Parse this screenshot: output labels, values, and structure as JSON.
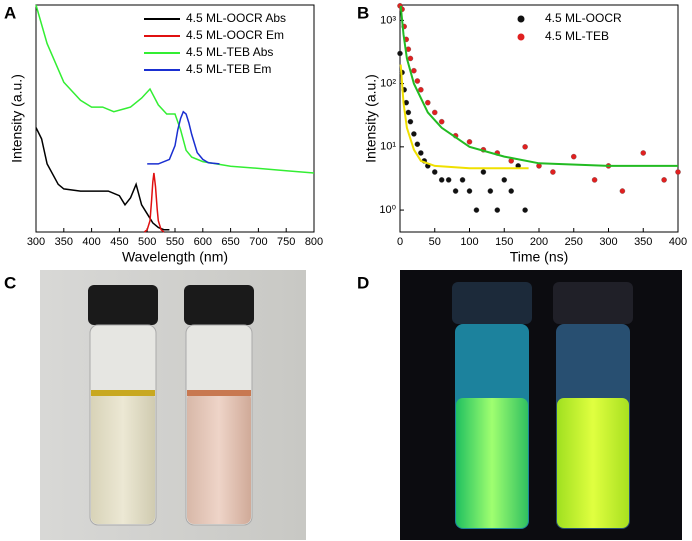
{
  "panel_labels": [
    "A",
    "B",
    "C",
    "D"
  ],
  "chart_data": [
    {
      "type": "line",
      "xlabel": "Wavelength (nm)",
      "ylabel": "Intensity (a.u.)",
      "xlim": [
        300,
        800
      ],
      "xticks": [
        300,
        350,
        400,
        450,
        500,
        550,
        600,
        650,
        700,
        750,
        800
      ],
      "ylim": [
        0,
        10
      ],
      "legend": "upper right",
      "series": [
        {
          "name": "4.5 ML-OOCR Abs",
          "color": "#000000",
          "x": [
            300,
            310,
            320,
            340,
            350,
            380,
            400,
            430,
            450,
            460,
            470,
            480,
            490,
            500,
            510,
            520,
            530,
            540
          ],
          "values": [
            4.6,
            4.1,
            3.0,
            2.1,
            1.9,
            1.8,
            1.8,
            1.8,
            1.6,
            1.2,
            1.5,
            2.1,
            1.2,
            0.8,
            0.4,
            0.2,
            0.1,
            0.1
          ]
        },
        {
          "name": "4.5 ML-OOCR Em",
          "color": "#e01010",
          "x": [
            495,
            500,
            505,
            508,
            510,
            512,
            515,
            518,
            520,
            525,
            530
          ],
          "values": [
            0,
            0.1,
            0.5,
            1.4,
            2.2,
            2.6,
            2.0,
            1.0,
            0.5,
            0.1,
            0
          ]
        },
        {
          "name": "4.5 ML-TEB Abs",
          "color": "#33ee33",
          "x": [
            300,
            320,
            350,
            380,
            400,
            420,
            440,
            470,
            490,
            505,
            520,
            535,
            550,
            560,
            570,
            580,
            600,
            650,
            700,
            750,
            800
          ],
          "values": [
            10,
            8.3,
            6.6,
            5.8,
            5.5,
            5.5,
            5.3,
            5.5,
            5.9,
            6.3,
            5.6,
            5.2,
            5.2,
            4.5,
            3.6,
            3.3,
            3.1,
            2.9,
            2.8,
            2.7,
            2.6
          ]
        },
        {
          "name": "4.5 ML-TEB Em",
          "color": "#1a2fd1",
          "x": [
            500,
            520,
            540,
            550,
            555,
            560,
            565,
            570,
            575,
            580,
            590,
            600,
            610,
            630
          ],
          "values": [
            3.0,
            3.0,
            3.2,
            3.8,
            4.5,
            5.0,
            5.3,
            5.2,
            4.8,
            4.3,
            3.5,
            3.2,
            3.05,
            3.0
          ]
        }
      ]
    },
    {
      "type": "scatter",
      "xlabel": "Time (ns)",
      "ylabel": "Intensity (a.u.)",
      "xlim": [
        0,
        400
      ],
      "xticks": [
        0,
        50,
        100,
        150,
        200,
        250,
        300,
        350,
        400
      ],
      "ylim": [
        0.45,
        1750
      ],
      "log_y": true,
      "legend": "upper right",
      "yticks": [
        {
          "value": 1,
          "label": "10⁰"
        },
        {
          "value": 10,
          "label": "10¹"
        },
        {
          "value": 100,
          "label": "10²"
        },
        {
          "value": 1000,
          "label": "10³"
        }
      ],
      "series": [
        {
          "name": "4.5 ML-OOCR",
          "color": "#111111",
          "x": [
            0,
            3,
            6,
            9,
            12,
            15,
            20,
            25,
            30,
            35,
            40,
            50,
            60,
            70,
            80,
            90,
            100,
            110,
            120,
            130,
            140,
            150,
            160,
            170,
            180
          ],
          "values": [
            300,
            150,
            80,
            50,
            35,
            25,
            16,
            11,
            8,
            6,
            5,
            4,
            3,
            3,
            2,
            3,
            2,
            1,
            4,
            2,
            1,
            3,
            2,
            5,
            1
          ]
        },
        {
          "name": "4.5 ML-TEB",
          "color": "#e02020",
          "x": [
            0,
            3,
            6,
            9,
            12,
            15,
            20,
            25,
            30,
            40,
            50,
            60,
            80,
            100,
            120,
            140,
            160,
            180,
            200,
            220,
            250,
            280,
            300,
            320,
            350,
            380,
            400
          ],
          "values": [
            1700,
            1500,
            800,
            500,
            350,
            250,
            160,
            110,
            80,
            50,
            35,
            25,
            15,
            12,
            9,
            8,
            6,
            10,
            5,
            4,
            7,
            3,
            5,
            2,
            8,
            3,
            4
          ]
        }
      ],
      "fits": [
        {
          "color": "#f0e000",
          "x": [
            1,
            5,
            10,
            20,
            30,
            50,
            100,
            185
          ],
          "values": [
            200,
            50,
            20,
            9,
            6,
            5,
            4.6,
            4.6
          ]
        },
        {
          "color": "#22bb22",
          "x": [
            1,
            5,
            10,
            20,
            40,
            60,
            100,
            150,
            200,
            300,
            400
          ],
          "values": [
            1700,
            600,
            250,
            100,
            35,
            20,
            10,
            7,
            5.5,
            5,
            5
          ]
        }
      ]
    }
  ]
}
